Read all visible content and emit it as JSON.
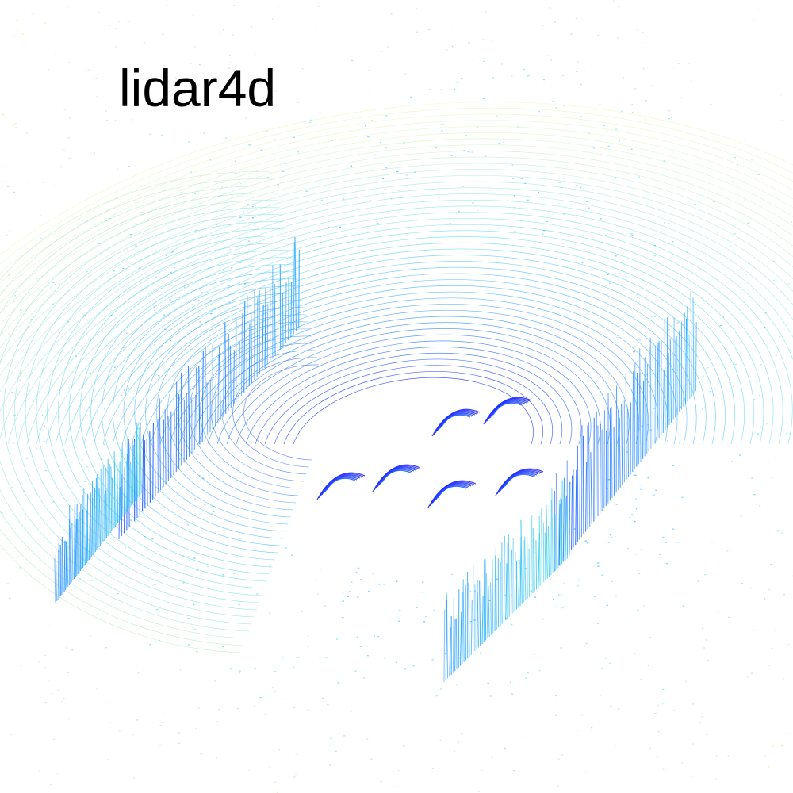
{
  "title": "lidar4d",
  "point_cloud": {
    "colormap": [
      "#1a1aff",
      "#1f6fff",
      "#2aa8ff",
      "#3fd1f0",
      "#7fe0d0",
      "#c8ee9a",
      "#eaf57a"
    ]
  }
}
